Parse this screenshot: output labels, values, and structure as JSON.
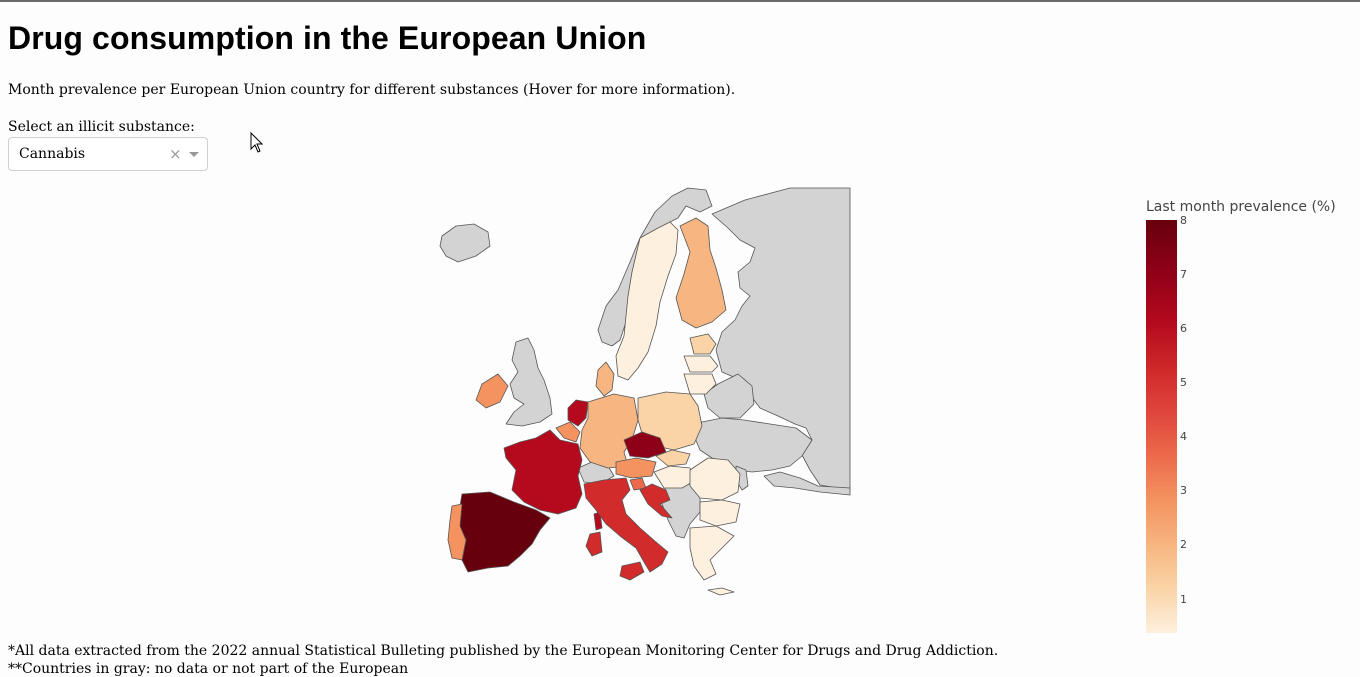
{
  "page": {
    "title": "Drug consumption in the European Union",
    "subtitle": "Month prevalence per European Union country for different substances (Hover for more information)."
  },
  "selector": {
    "label": "Select an illicit substance:",
    "value": "Cannabis",
    "clear_symbol": "×"
  },
  "colorbar": {
    "title": "Last month prevalence (%)",
    "ticks": [
      "8",
      "7",
      "6",
      "5",
      "4",
      "3",
      "2",
      "1"
    ],
    "range": [
      0.3,
      8
    ],
    "colors": [
      "#fef0de",
      "#fad3a6",
      "#f7b681",
      "#f4935f",
      "#ec6a4b",
      "#e0473d",
      "#d12b2b",
      "#b50a1e",
      "#8e0017",
      "#67000d"
    ]
  },
  "map": {
    "no_data_color": "#d3d3d3",
    "border_color": "#444444"
  },
  "footnotes": [
    "*All data extracted from the 2022 annual Statistical Bulleting published by the European Monitoring Center for Drugs and Drug Addiction.",
    "**Countries in gray: no data or not part of the European"
  ]
}
